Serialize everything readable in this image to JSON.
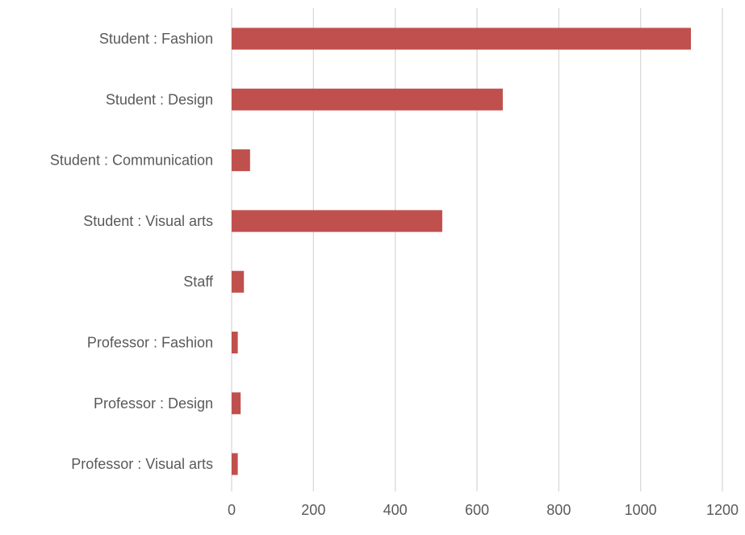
{
  "chart_data": {
    "type": "bar",
    "orientation": "horizontal",
    "categories": [
      "Student : Fashion",
      "Student : Design",
      "Student : Communication",
      "Student : Visual arts",
      "Staff",
      "Professor : Fashion",
      "Professor : Design",
      "Professor : Visual arts"
    ],
    "values": [
      1123,
      663,
      45,
      515,
      30,
      15,
      22,
      15
    ],
    "xlim": [
      0,
      1200
    ],
    "x_ticks": [
      "0",
      "200",
      "400",
      "600",
      "800",
      "1000",
      "1200"
    ],
    "grid": true,
    "legend": "none",
    "bar_color": "#c0504d",
    "grid_color": "#d9d9d9"
  }
}
